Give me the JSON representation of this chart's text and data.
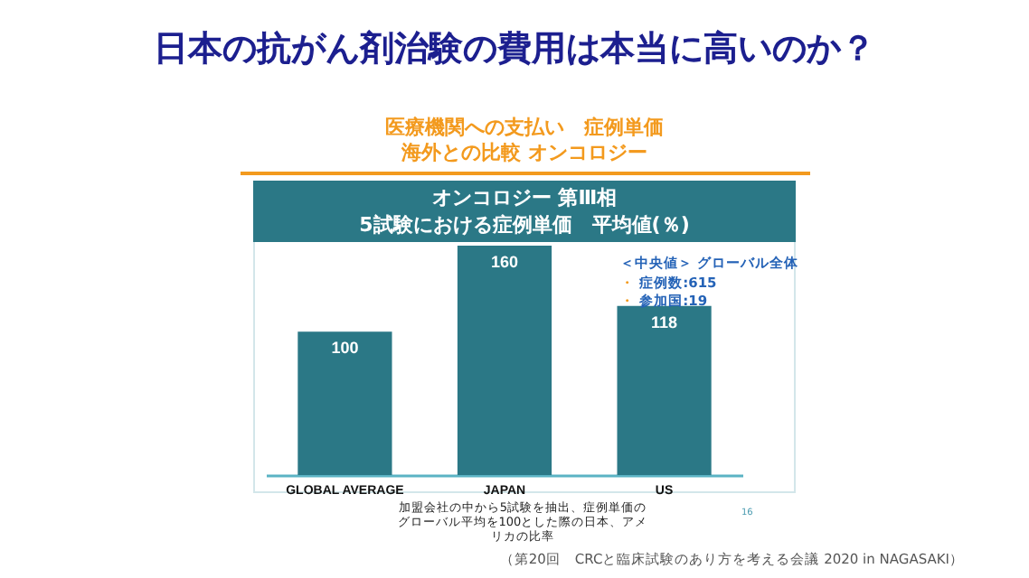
{
  "chart_data": {
    "type": "bar",
    "title": "日本の抗がん剤治験の費用は本当に高いのか？",
    "subtitle": "医療機関への支払い　症例単価海外との比較 オンコロジー",
    "categories": [
      "GLOBAL AVERAGE",
      "JAPAN",
      "US"
    ],
    "values": [
      100,
      160,
      118
    ],
    "color": "#2b7886",
    "data_labels": true,
    "annotations": [
      "オンコロジー 第Ⅲ相\n5試験における症例単価　平均値(％)",
      "＜中央値＞ グローバル全体",
      "・ 症例数:615",
      "・ 参加国:19",
      "加盟会社の中から5試験を抽出、症例単価のグローバル平均を100とした際の日本、アメリカの比率",
      "16",
      "（第20回　CRCと臨床試験のあり方を考える会議 2020 in NAGASAKI）"
    ]
  }
}
